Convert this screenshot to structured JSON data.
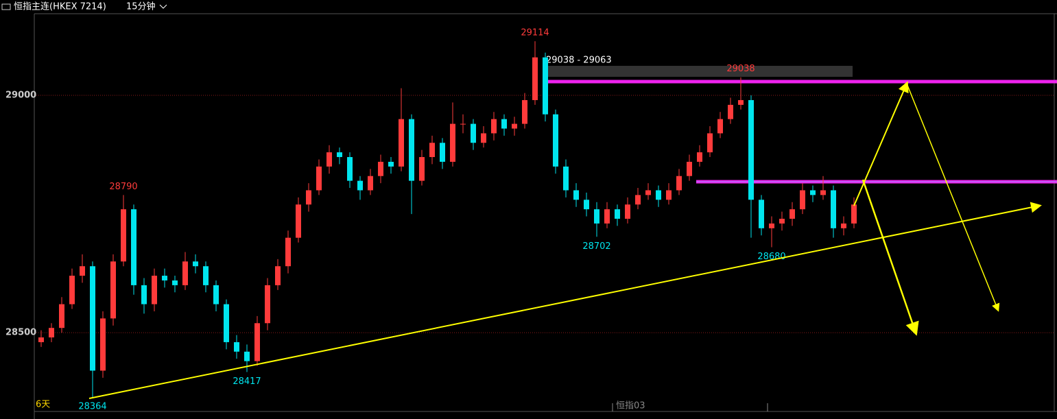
{
  "chart_data": {
    "type": "candlestick",
    "title": "恒指主连(HKEX 7214)",
    "period": "15分钟",
    "range_label": "29038 - 29063",
    "span_label": "6天",
    "contract_label": "恒指03",
    "ylim": [
      28334,
      29172
    ],
    "yticks": [
      28500,
      29000
    ],
    "grid": true,
    "up_color": "#ff3b3b",
    "down_color": "#00e5ee",
    "ohlc": [
      [
        28480,
        28505,
        28470,
        28490
      ],
      [
        28490,
        28520,
        28480,
        28510
      ],
      [
        28510,
        28575,
        28500,
        28560
      ],
      [
        28560,
        28635,
        28550,
        28620
      ],
      [
        28620,
        28665,
        28605,
        28640
      ],
      [
        28640,
        28650,
        28364,
        28420
      ],
      [
        28420,
        28545,
        28405,
        28530
      ],
      [
        28530,
        28665,
        28515,
        28650
      ],
      [
        28650,
        28790,
        28640,
        28760
      ],
      [
        28760,
        28770,
        28580,
        28600
      ],
      [
        28600,
        28615,
        28540,
        28560
      ],
      [
        28560,
        28635,
        28545,
        28620
      ],
      [
        28620,
        28635,
        28595,
        28610
      ],
      [
        28610,
        28620,
        28585,
        28600
      ],
      [
        28600,
        28670,
        28590,
        28650
      ],
      [
        28650,
        28665,
        28625,
        28640
      ],
      [
        28640,
        28650,
        28585,
        28600
      ],
      [
        28600,
        28610,
        28545,
        28560
      ],
      [
        28560,
        28570,
        28465,
        28480
      ],
      [
        28480,
        28495,
        28445,
        28460
      ],
      [
        28460,
        28475,
        28417,
        28440
      ],
      [
        28440,
        28535,
        28430,
        28520
      ],
      [
        28520,
        28615,
        28505,
        28600
      ],
      [
        28600,
        28655,
        28590,
        28640
      ],
      [
        28640,
        28715,
        28625,
        28700
      ],
      [
        28700,
        28785,
        28690,
        28770
      ],
      [
        28770,
        28815,
        28755,
        28800
      ],
      [
        28800,
        28865,
        28790,
        28850
      ],
      [
        28850,
        28895,
        28835,
        28880
      ],
      [
        28880,
        28890,
        28855,
        28870
      ],
      [
        28870,
        28880,
        28805,
        28820
      ],
      [
        28820,
        28830,
        28780,
        28800
      ],
      [
        28800,
        28845,
        28790,
        28830
      ],
      [
        28830,
        28875,
        28815,
        28860
      ],
      [
        28860,
        28870,
        28835,
        28850
      ],
      [
        28850,
        29015,
        28840,
        28950
      ],
      [
        28950,
        28960,
        28750,
        28820
      ],
      [
        28820,
        28885,
        28810,
        28870
      ],
      [
        28870,
        28915,
        28855,
        28900
      ],
      [
        28900,
        28910,
        28845,
        28860
      ],
      [
        28860,
        28985,
        28850,
        28940
      ],
      [
        28940,
        28960,
        28920,
        28940
      ],
      [
        28940,
        28950,
        28885,
        28900
      ],
      [
        28900,
        28935,
        28890,
        28920
      ],
      [
        28920,
        28965,
        28905,
        28950
      ],
      [
        28950,
        28960,
        28915,
        28930
      ],
      [
        28930,
        28955,
        28915,
        28940
      ],
      [
        28940,
        29005,
        28930,
        28990
      ],
      [
        28990,
        29114,
        28980,
        29080
      ],
      [
        29080,
        29090,
        28945,
        28960
      ],
      [
        28960,
        28970,
        28835,
        28850
      ],
      [
        28850,
        28865,
        28785,
        28800
      ],
      [
        28800,
        28815,
        28765,
        28780
      ],
      [
        28780,
        28795,
        28745,
        28760
      ],
      [
        28760,
        28775,
        28702,
        28730
      ],
      [
        28730,
        28775,
        28720,
        28760
      ],
      [
        28760,
        28770,
        28725,
        28740
      ],
      [
        28740,
        28785,
        28730,
        28770
      ],
      [
        28770,
        28805,
        28760,
        28790
      ],
      [
        28790,
        28815,
        28780,
        28800
      ],
      [
        28800,
        28810,
        28765,
        28780
      ],
      [
        28780,
        28815,
        28770,
        28800
      ],
      [
        28800,
        28845,
        28790,
        28830
      ],
      [
        28830,
        28875,
        28820,
        28860
      ],
      [
        28860,
        28895,
        28850,
        28880
      ],
      [
        28880,
        28935,
        28870,
        28920
      ],
      [
        28920,
        28965,
        28910,
        28950
      ],
      [
        28950,
        28995,
        28940,
        28980
      ],
      [
        28980,
        29038,
        28970,
        28990
      ],
      [
        28990,
        29000,
        28700,
        28780
      ],
      [
        28780,
        28790,
        28705,
        28720
      ],
      [
        28720,
        28745,
        28680,
        28730
      ],
      [
        28730,
        28755,
        28715,
        28740
      ],
      [
        28740,
        28775,
        28725,
        28760
      ],
      [
        28760,
        28815,
        28750,
        28800
      ],
      [
        28800,
        28810,
        28775,
        28790
      ],
      [
        28790,
        28830,
        28780,
        28800
      ],
      [
        28800,
        28810,
        28700,
        28720
      ],
      [
        28720,
        28745,
        28705,
        28730
      ],
      [
        28730,
        28785,
        28720,
        28770
      ]
    ]
  }
}
